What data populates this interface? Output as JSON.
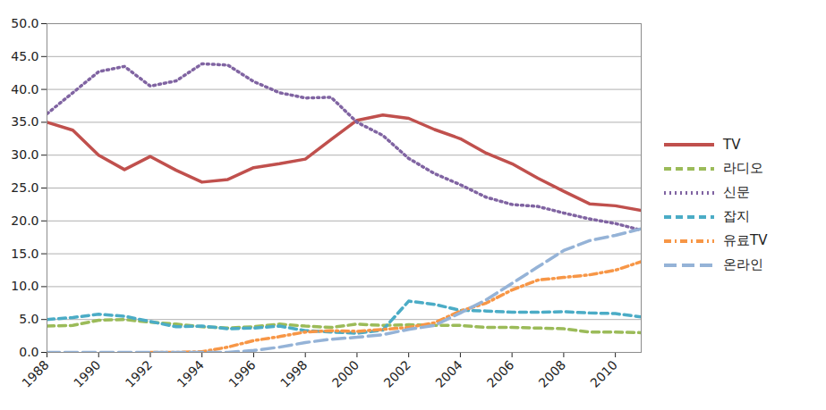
{
  "chart_data": {
    "type": "line",
    "x": [
      1988,
      1989,
      1990,
      1991,
      1992,
      1993,
      1994,
      1995,
      1996,
      1997,
      1998,
      1999,
      2000,
      2001,
      2002,
      2003,
      2004,
      2005,
      2006,
      2007,
      2008,
      2009,
      2010,
      2011
    ],
    "xlim": [
      1988,
      2011
    ],
    "xticks": [
      1988,
      1990,
      1992,
      1994,
      1996,
      1998,
      2000,
      2002,
      2004,
      2006,
      2008,
      2010
    ],
    "ylim": [
      0,
      50
    ],
    "yticks": [
      {
        "value": 0,
        "label": "0.0"
      },
      {
        "value": 5,
        "label": "5.0"
      },
      {
        "value": 10,
        "label": "10.0"
      },
      {
        "value": 15,
        "label": "15.0"
      },
      {
        "value": 20,
        "label": "20.0"
      },
      {
        "value": 25,
        "label": "25.0"
      },
      {
        "value": 30,
        "label": "30.0"
      },
      {
        "value": 35,
        "label": "35.0"
      },
      {
        "value": 40,
        "label": "40.0"
      },
      {
        "value": 45,
        "label": "45.0"
      },
      {
        "value": 50,
        "label": "50.0"
      }
    ],
    "grid": true,
    "legend": "right",
    "series": [
      {
        "name": "TV",
        "color": "#c0504d",
        "line_style": "solid",
        "values": [
          35.0,
          33.8,
          30.0,
          27.8,
          29.8,
          27.7,
          25.9,
          26.3,
          28.1,
          28.7,
          29.4,
          32.4,
          35.3,
          36.1,
          35.6,
          33.9,
          32.5,
          30.3,
          28.7,
          26.5,
          24.5,
          22.6,
          22.3,
          21.6
        ]
      },
      {
        "name": "라디오",
        "color": "#9bbb59",
        "line_style": "dashed",
        "values": [
          4.0,
          4.1,
          4.9,
          5.0,
          4.6,
          4.3,
          3.9,
          3.7,
          3.9,
          4.3,
          4.0,
          3.8,
          4.3,
          4.1,
          4.2,
          4.1,
          4.1,
          3.8,
          3.8,
          3.7,
          3.6,
          3.1,
          3.1,
          3.0
        ]
      },
      {
        "name": "신문",
        "color": "#8064a2",
        "line_style": "dotted",
        "values": [
          36.3,
          39.5,
          42.7,
          43.5,
          40.5,
          41.3,
          43.9,
          43.7,
          41.2,
          39.5,
          38.7,
          38.8,
          35.0,
          33.0,
          29.5,
          27.2,
          25.5,
          23.6,
          22.5,
          22.2,
          21.2,
          20.3,
          19.6,
          18.6
        ]
      },
      {
        "name": "잡지",
        "color": "#4bacc6",
        "line_style": "dashed",
        "values": [
          5.0,
          5.3,
          5.8,
          5.5,
          4.7,
          3.9,
          4.0,
          3.6,
          3.7,
          4.0,
          3.3,
          3.1,
          2.9,
          3.4,
          7.8,
          7.3,
          6.4,
          6.3,
          6.1,
          6.1,
          6.2,
          6.0,
          5.9,
          5.4
        ]
      },
      {
        "name": "유료TV",
        "color": "#f79646",
        "line_style": "dashdot",
        "values": [
          null,
          null,
          null,
          null,
          0.0,
          0.0,
          0.1,
          0.8,
          1.8,
          2.4,
          3.1,
          3.3,
          3.2,
          3.5,
          3.8,
          4.5,
          6.3,
          7.5,
          9.5,
          11.0,
          11.4,
          11.8,
          12.5,
          13.8
        ]
      },
      {
        "name": "온라인",
        "color": "#95b3d7",
        "line_style": "longdash",
        "values": [
          0.0,
          0.0,
          0.0,
          0.0,
          0.0,
          0.0,
          0.0,
          0.0,
          0.3,
          0.8,
          1.5,
          2.0,
          2.3,
          2.7,
          3.5,
          4.1,
          6.0,
          8.0,
          10.5,
          13.0,
          15.5,
          17.0,
          17.8,
          18.8
        ]
      }
    ]
  }
}
